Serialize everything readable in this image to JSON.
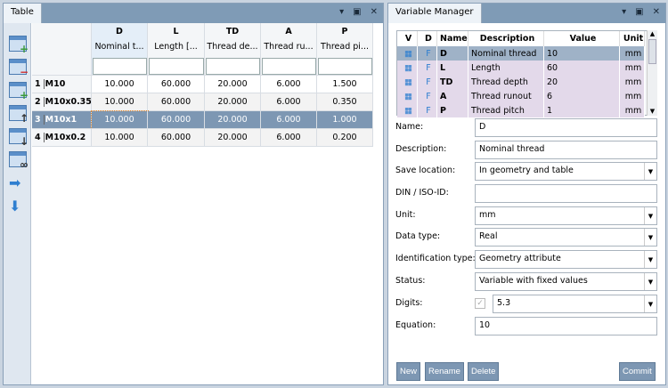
{
  "table_panel": {
    "tab": "Table",
    "columns": [
      {
        "key": "D",
        "desc": "Nominal t..."
      },
      {
        "key": "L",
        "desc": "Length [..."
      },
      {
        "key": "TD",
        "desc": "Thread de..."
      },
      {
        "key": "A",
        "desc": "Thread ru..."
      },
      {
        "key": "P",
        "desc": "Thread pi..."
      }
    ],
    "rows": [
      {
        "num": "1",
        "name": "M10",
        "values": [
          "10.000",
          "60.000",
          "20.000",
          "6.000",
          "1.500"
        ]
      },
      {
        "num": "2",
        "name": "M10x0.35",
        "values": [
          "10.000",
          "60.000",
          "20.000",
          "6.000",
          "0.350"
        ]
      },
      {
        "num": "3",
        "name": "M10x1",
        "values": [
          "10.000",
          "60.000",
          "20.000",
          "6.000",
          "1.000"
        ],
        "selected": true
      },
      {
        "num": "4",
        "name": "M10x0.2",
        "values": [
          "10.000",
          "60.000",
          "20.000",
          "6.000",
          "0.200"
        ]
      }
    ],
    "toolbar_icons": [
      "add-row-icon",
      "delete-row-icon",
      "add-column-icon",
      "move-up-icon",
      "move-down-icon",
      "preview-icon",
      "arrow-right-icon",
      "arrow-down-icon"
    ]
  },
  "var_panel": {
    "tab": "Variable Manager",
    "headers": [
      "V",
      "D",
      "Name",
      "Description",
      "Value",
      "Unit"
    ],
    "rows": [
      {
        "name": "D",
        "desc": "Nominal thread",
        "value": "10",
        "unit": "mm"
      },
      {
        "name": "L",
        "desc": "Length",
        "value": "60",
        "unit": "mm"
      },
      {
        "name": "TD",
        "desc": "Thread depth",
        "value": "20",
        "unit": "mm"
      },
      {
        "name": "A",
        "desc": "Thread runout",
        "value": "6",
        "unit": "mm"
      },
      {
        "name": "P",
        "desc": "Thread pitch",
        "value": "1",
        "unit": "mm"
      }
    ],
    "form": {
      "name_label": "Name:",
      "name": "D",
      "desc_label": "Description:",
      "desc": "Nominal thread",
      "save_label": "Save location:",
      "save": "In geometry and table",
      "din_label": "DIN / ISO-ID:",
      "din": "",
      "unit_label": "Unit:",
      "unit": "mm",
      "type_label": "Data type:",
      "type": "Real",
      "ident_label": "Identification type:",
      "ident": "Geometry attribute",
      "status_label": "Status:",
      "status": "Variable with fixed values",
      "digits_label": "Digits:",
      "digits": "5.3",
      "eq_label": "Equation:",
      "eq": "10"
    },
    "buttons": {
      "new": "New",
      "rename": "Rename",
      "delete": "Delete",
      "commit": "Commit"
    }
  },
  "colors": {
    "titlebar": "#7f9bb6",
    "selection": "#7d97b3",
    "var_row": "#e3d9ea"
  }
}
